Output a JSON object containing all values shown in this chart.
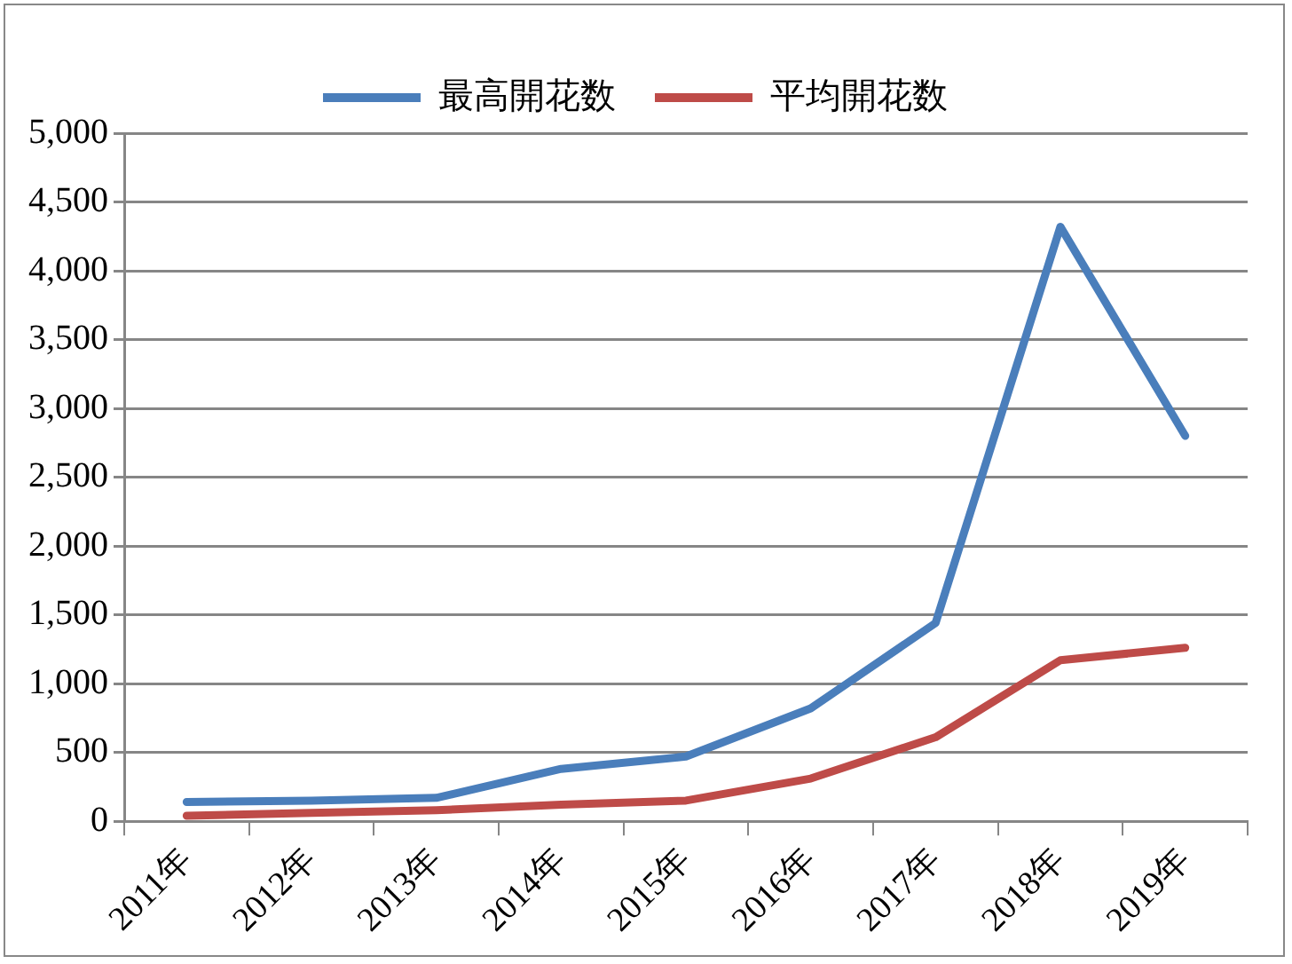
{
  "chart_data": {
    "type": "line",
    "categories": [
      "2011年",
      "2012年",
      "2013年",
      "2014年",
      "2015年",
      "2016年",
      "2017年",
      "2018年",
      "2019年"
    ],
    "series": [
      {
        "name": "最高開花数",
        "color": "#4a7ebb",
        "values": [
          140,
          150,
          170,
          380,
          470,
          820,
          1440,
          4320,
          2800
        ]
      },
      {
        "name": "平均開花数",
        "color": "#be4b48",
        "values": [
          40,
          60,
          80,
          120,
          150,
          310,
          610,
          1170,
          1260
        ]
      }
    ],
    "ylim": [
      0,
      5000
    ],
    "yticks": [
      0,
      500,
      {
        "value": 1000,
        "label": "1,000"
      },
      {
        "value": 1500,
        "label": "1,500"
      },
      {
        "value": 2000,
        "label": "2,000"
      },
      {
        "value": 2500,
        "label": "2,500"
      },
      {
        "value": 3000,
        "label": "3,000"
      },
      {
        "value": 3500,
        "label": "3,500"
      },
      {
        "value": 4000,
        "label": "4,000"
      },
      {
        "value": 4500,
        "label": "4,500"
      },
      {
        "value": 5000,
        "label": "5,000"
      }
    ],
    "grid": "y",
    "legend": "top",
    "marker": "none",
    "line_style": "solid"
  }
}
